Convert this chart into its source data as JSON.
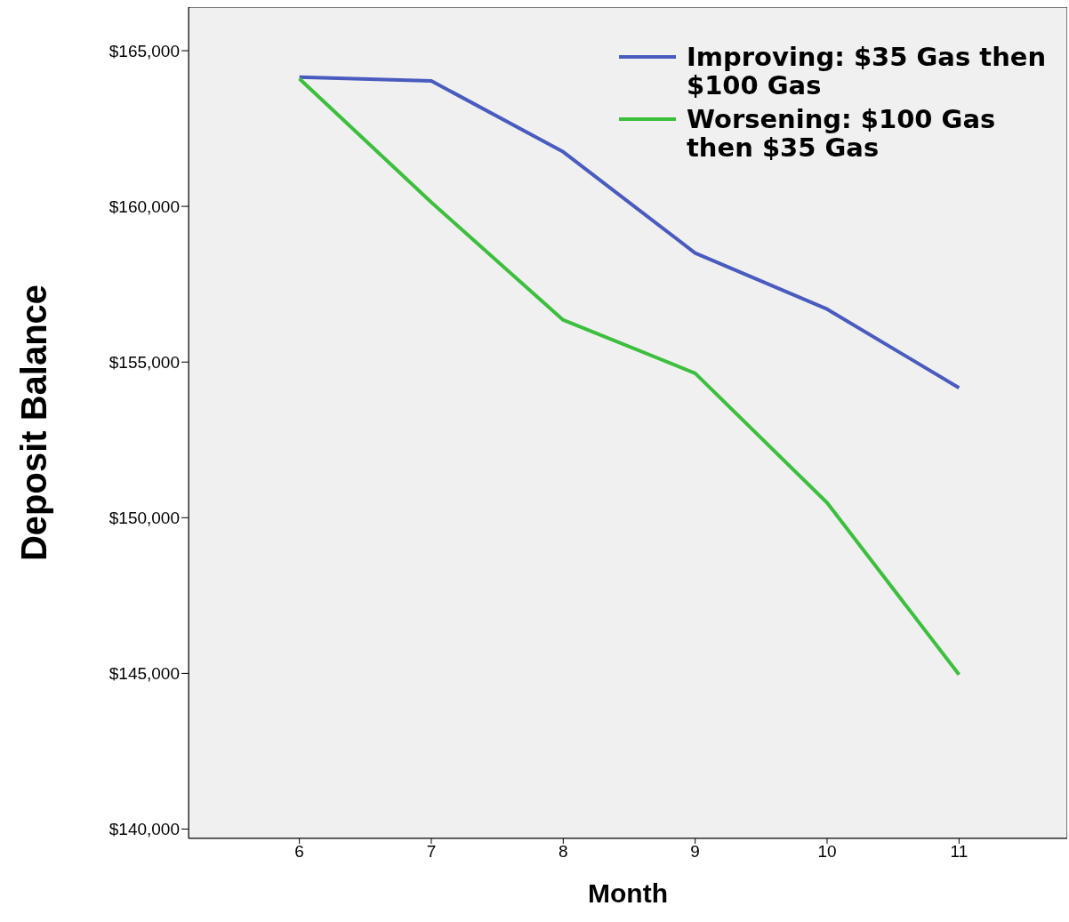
{
  "chart_data": {
    "type": "line",
    "xlabel": "Month",
    "ylabel": "Deposit Balance",
    "x": [
      6,
      7,
      8,
      9,
      10,
      11
    ],
    "series": [
      {
        "name": "Improving: $35 Gas then $100 Gas",
        "color": "#4a5bbf",
        "values": [
          164150,
          164030,
          161750,
          158500,
          156700,
          154170
        ]
      },
      {
        "name": "Worsening: $100 Gas then $35 Gas",
        "color": "#3cbf3c",
        "values": [
          164100,
          160130,
          156350,
          154640,
          150480,
          144960
        ]
      }
    ],
    "xlim": [
      5.16,
      11.82
    ],
    "xticks": [
      6,
      7,
      8,
      9,
      10,
      11
    ],
    "ylim": [
      139700,
      166400
    ],
    "yticks": [
      {
        "value": 140000,
        "label": "$140,000"
      },
      {
        "value": 145000,
        "label": "$145,000"
      },
      {
        "value": 150000,
        "label": "$150,000"
      },
      {
        "value": 155000,
        "label": "$155,000"
      },
      {
        "value": 160000,
        "label": "$160,000"
      },
      {
        "value": 165000,
        "label": "$165,000"
      }
    ],
    "grid": false,
    "legend": "top right",
    "marker": "none",
    "line_style": "solid"
  }
}
